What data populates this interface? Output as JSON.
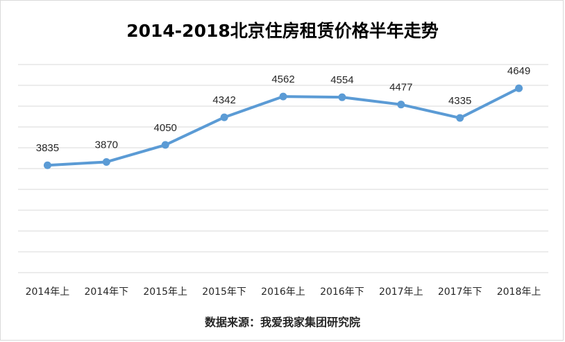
{
  "chart_data": {
    "type": "line",
    "title": "2014-2018北京住房租赁价格半年走势",
    "source": "数据来源：我爱我家集团研究院",
    "categories": [
      "2014年上",
      "2014年下",
      "2015年上",
      "2015年下",
      "2016年上",
      "2016年下",
      "2017年上",
      "2017年下",
      "2018年上"
    ],
    "series": [
      {
        "values": [
          3835,
          3870,
          4050,
          4342,
          4562,
          4554,
          4477,
          4335,
          4649
        ],
        "color": "#5b9bd5"
      }
    ],
    "ylim": [
      2700,
      4900
    ],
    "grid": true,
    "data_labels": true
  }
}
